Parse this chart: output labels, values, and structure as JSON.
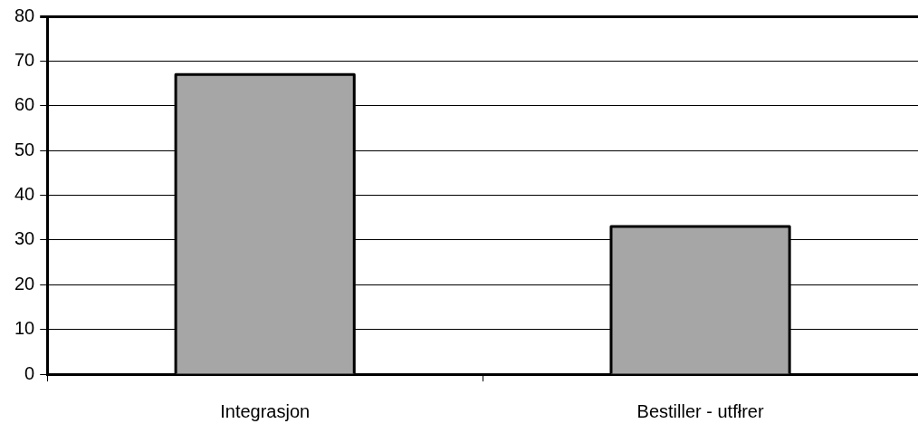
{
  "chart_data": {
    "type": "bar",
    "categories": [
      "Integrasjon",
      "Bestiller - utfłrer"
    ],
    "values": [
      67,
      33
    ],
    "color": "#a6a6a6",
    "ylim": [
      0,
      80
    ],
    "yticks": [
      0,
      10,
      20,
      30,
      40,
      50,
      60,
      70,
      80
    ],
    "grid": "y",
    "legend": false
  }
}
